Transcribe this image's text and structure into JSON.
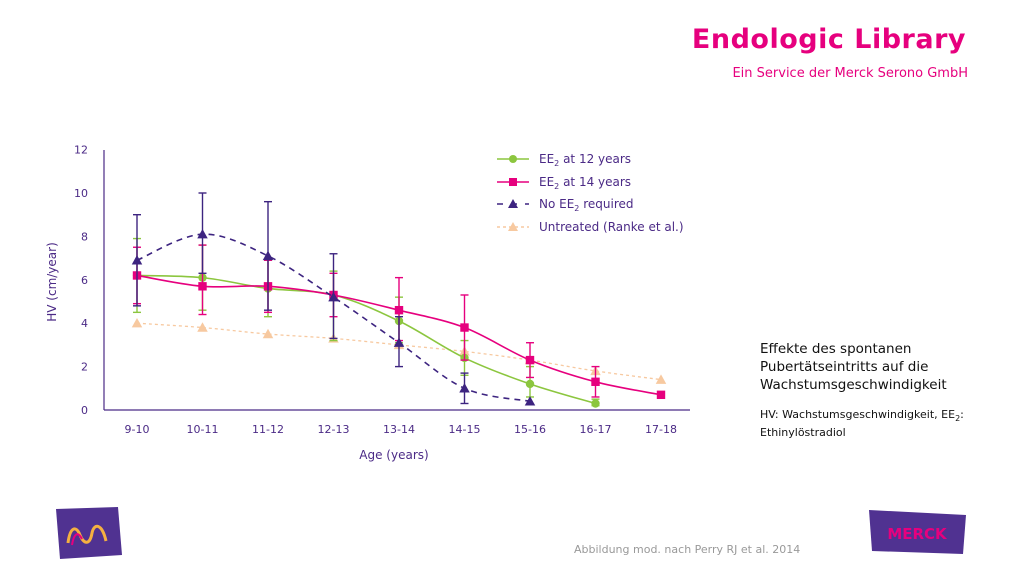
{
  "header": {
    "brand_title": "Endologic Library",
    "brand_subtitle": "Ein Service der Merck Serono GmbH"
  },
  "side": {
    "title": "Effekte des spontanen Pubertätseintritts auf die Wachstumsgeschwindigkeit",
    "note_prefix": "HV: Wachstumsgeschwindigkeit, EE",
    "note_sub": "2",
    "note_suffix": ": Ethinylöstradiol"
  },
  "footer": {
    "source": "Abbildung mod. nach Perry RJ et al. 2014",
    "merck_logo_text": "MERCK"
  },
  "colors": {
    "brand": "#e6007e",
    "axis": "#4b2a86",
    "green": "#8cc63f",
    "magenta": "#e6007e",
    "purple": "#3d2480",
    "peach": "#f7c9a0"
  },
  "icons": [
    "merck-m-logo-icon",
    "merck-wordmark-logo-icon"
  ],
  "chart_data": {
    "type": "line",
    "xlabel": "Age (years)",
    "ylabel": "HV (cm/year)",
    "ylim": [
      0,
      12
    ],
    "yticks": [
      0,
      2,
      4,
      6,
      8,
      10,
      12
    ],
    "categories": [
      "9-10",
      "10-11",
      "11-12",
      "12-13",
      "13-14",
      "14-15",
      "15-16",
      "16-17",
      "17-18"
    ],
    "legend_position": "top-right",
    "series": [
      {
        "name": "EE2 at 12 years",
        "legend_main": "EE",
        "legend_sub": "2",
        "legend_rest": " at 12 years",
        "color": "#8cc63f",
        "marker": "circle",
        "dashed": false,
        "values": [
          6.2,
          6.1,
          5.6,
          5.3,
          4.1,
          2.4,
          1.2,
          0.3,
          null
        ],
        "err_low": [
          4.5,
          4.6,
          4.3,
          3.2,
          3.1,
          1.6,
          0.6,
          0.2,
          null
        ],
        "err_high": [
          7.9,
          7.6,
          6.9,
          6.4,
          5.2,
          3.2,
          2.0,
          0.5,
          null
        ]
      },
      {
        "name": "EE2 at 14 years",
        "legend_main": "EE",
        "legend_sub": "2",
        "legend_rest": " at 14 years",
        "color": "#e6007e",
        "marker": "square",
        "dashed": false,
        "values": [
          6.2,
          5.7,
          5.7,
          5.3,
          4.6,
          3.8,
          2.3,
          1.3,
          0.7
        ],
        "err_low": [
          4.9,
          4.4,
          4.5,
          4.3,
          3.2,
          2.3,
          1.5,
          0.6,
          null
        ],
        "err_high": [
          7.5,
          7.6,
          6.9,
          6.3,
          6.1,
          5.3,
          3.1,
          2.0,
          null
        ]
      },
      {
        "name": "No EE2 required",
        "legend_main": "No EE",
        "legend_sub": "2",
        "legend_rest": " required",
        "color": "#3d2480",
        "marker": "triangle",
        "dashed": true,
        "values": [
          6.9,
          8.1,
          7.1,
          5.2,
          3.1,
          1.0,
          0.4,
          null,
          null
        ],
        "err_low": [
          4.8,
          6.3,
          4.6,
          3.3,
          2.0,
          0.3,
          null,
          null,
          null
        ],
        "err_high": [
          9.0,
          10.0,
          9.6,
          7.2,
          4.3,
          1.7,
          null,
          null,
          null
        ]
      },
      {
        "name": "Untreated (Ranke et al.)",
        "legend_main": "Untreated (Ranke et al.)",
        "legend_sub": "",
        "legend_rest": "",
        "color": "#f7c9a0",
        "marker": "triangle",
        "dashed": true,
        "values": [
          4.0,
          3.8,
          3.5,
          3.3,
          3.0,
          2.7,
          2.3,
          1.8,
          1.4
        ],
        "err_low": [
          null,
          null,
          null,
          null,
          null,
          null,
          null,
          null,
          null
        ],
        "err_high": [
          null,
          null,
          null,
          null,
          null,
          null,
          null,
          null,
          null
        ]
      }
    ]
  }
}
